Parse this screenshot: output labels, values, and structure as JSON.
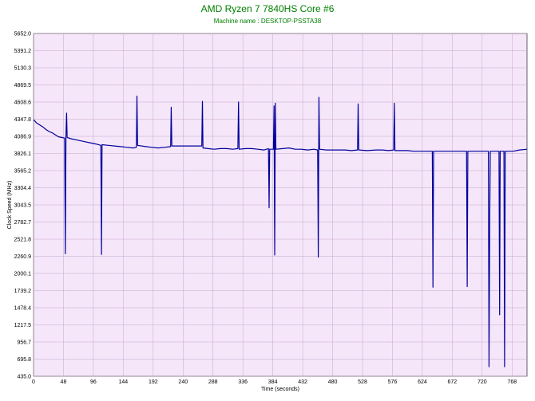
{
  "chart_data": {
    "type": "line",
    "title": "AMD Ryzen 7 7840HS Core #6",
    "subtitle": "Machine name : DESKTOP-PSSTA38",
    "xlabel": "Time (seconds)",
    "ylabel": "Clock Speed (MHz)",
    "xlim": [
      0,
      792
    ],
    "ylim": [
      435.0,
      5652.0
    ],
    "x_ticks": [
      "0",
      "48",
      "96",
      "144",
      "192",
      "240",
      "288",
      "336",
      "384",
      "432",
      "480",
      "528",
      "576",
      "624",
      "672",
      "720",
      "768"
    ],
    "y_ticks": [
      "5652.0",
      "5391.2",
      "5130.3",
      "4869.5",
      "4608.6",
      "4347.8",
      "4086.9",
      "3826.1",
      "3565.2",
      "3304.4",
      "3043.5",
      "2782.7",
      "2521.8",
      "2260.9",
      "2000.1",
      "1739.2",
      "1478.4",
      "1217.5",
      "956.7",
      "695.8",
      "435.0"
    ],
    "grid": true,
    "colors": {
      "plot_bg": "#f5e6fa",
      "line": "#00009c",
      "grid": "#c8a8c8",
      "title": "#008000"
    },
    "series": [
      {
        "points": [
          [
            0,
            4340
          ],
          [
            5,
            4290
          ],
          [
            10,
            4260
          ],
          [
            15,
            4230
          ],
          [
            20,
            4190
          ],
          [
            25,
            4160
          ],
          [
            30,
            4140
          ],
          [
            35,
            4110
          ],
          [
            40,
            4080
          ],
          [
            45,
            4070
          ],
          [
            50,
            4060
          ],
          [
            51,
            2300
          ],
          [
            52,
            4090
          ],
          [
            53,
            4440
          ],
          [
            54,
            4070
          ],
          [
            60,
            4050
          ],
          [
            70,
            4030
          ],
          [
            80,
            4010
          ],
          [
            90,
            3990
          ],
          [
            100,
            3970
          ],
          [
            108,
            3950
          ],
          [
            109,
            2290
          ],
          [
            110,
            3960
          ],
          [
            120,
            3950
          ],
          [
            130,
            3940
          ],
          [
            140,
            3930
          ],
          [
            150,
            3920
          ],
          [
            160,
            3910
          ],
          [
            165,
            3920
          ],
          [
            166,
            4700
          ],
          [
            167,
            3950
          ],
          [
            180,
            3930
          ],
          [
            190,
            3920
          ],
          [
            200,
            3910
          ],
          [
            210,
            3920
          ],
          [
            220,
            3930
          ],
          [
            221,
            4530
          ],
          [
            222,
            3940
          ],
          [
            230,
            3940
          ],
          [
            240,
            3940
          ],
          [
            250,
            3940
          ],
          [
            260,
            3940
          ],
          [
            270,
            3940
          ],
          [
            271,
            4620
          ],
          [
            272,
            3910
          ],
          [
            280,
            3900
          ],
          [
            290,
            3890
          ],
          [
            300,
            3900
          ],
          [
            310,
            3900
          ],
          [
            320,
            3890
          ],
          [
            328,
            3900
          ],
          [
            329,
            4610
          ],
          [
            330,
            3890
          ],
          [
            340,
            3900
          ],
          [
            350,
            3900
          ],
          [
            360,
            3890
          ],
          [
            370,
            3880
          ],
          [
            377,
            3900
          ],
          [
            378,
            3000
          ],
          [
            379,
            3890
          ],
          [
            385,
            3890
          ],
          [
            386,
            4550
          ],
          [
            387,
            2280
          ],
          [
            388,
            4590
          ],
          [
            389,
            3890
          ],
          [
            400,
            3900
          ],
          [
            410,
            3910
          ],
          [
            420,
            3890
          ],
          [
            430,
            3890
          ],
          [
            440,
            3880
          ],
          [
            450,
            3890
          ],
          [
            456,
            3880
          ],
          [
            457,
            2250
          ],
          [
            458,
            4680
          ],
          [
            459,
            3890
          ],
          [
            470,
            3880
          ],
          [
            480,
            3880
          ],
          [
            490,
            3880
          ],
          [
            500,
            3880
          ],
          [
            510,
            3870
          ],
          [
            520,
            3880
          ],
          [
            521,
            4580
          ],
          [
            522,
            3880
          ],
          [
            535,
            3870
          ],
          [
            550,
            3880
          ],
          [
            560,
            3880
          ],
          [
            570,
            3870
          ],
          [
            578,
            3880
          ],
          [
            579,
            4590
          ],
          [
            580,
            3870
          ],
          [
            590,
            3870
          ],
          [
            600,
            3870
          ],
          [
            610,
            3860
          ],
          [
            620,
            3860
          ],
          [
            630,
            3860
          ],
          [
            640,
            3860
          ],
          [
            641,
            1790
          ],
          [
            642,
            3860
          ],
          [
            660,
            3860
          ],
          [
            680,
            3860
          ],
          [
            695,
            3860
          ],
          [
            696,
            1800
          ],
          [
            697,
            3860
          ],
          [
            710,
            3860
          ],
          [
            725,
            3860
          ],
          [
            730,
            3860
          ],
          [
            731,
            580
          ],
          [
            732,
            2620
          ],
          [
            733,
            3860
          ],
          [
            745,
            3860
          ],
          [
            747,
            3860
          ],
          [
            748,
            1370
          ],
          [
            749,
            3860
          ],
          [
            755,
            3860
          ],
          [
            756,
            580
          ],
          [
            757,
            3860
          ],
          [
            770,
            3860
          ],
          [
            780,
            3880
          ],
          [
            792,
            3890
          ]
        ]
      }
    ]
  }
}
